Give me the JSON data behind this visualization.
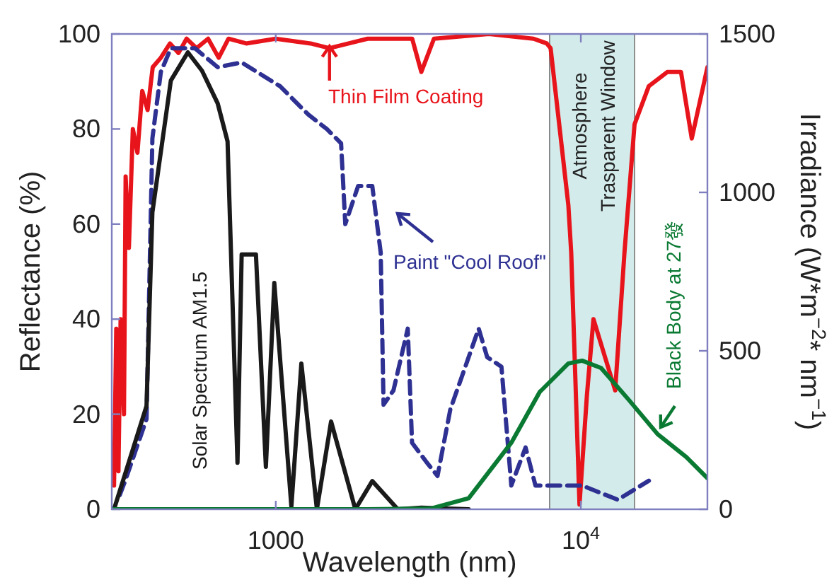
{
  "chart_data": {
    "type": "line",
    "xlabel": "Wavelength (nm)",
    "ylabel": "Reflectance (%)",
    "y2label": "Irradiance (W*m$^{−2}$* nm$^{−1}$)",
    "log": "x",
    "xlim": [
      290,
      26000
    ],
    "xticks": [
      1000,
      {
        "value": 10000,
        "label": "10$^{4}$"
      }
    ],
    "ylim": [
      0,
      100
    ],
    "yticks": [
      0,
      20,
      40,
      60,
      80,
      100
    ],
    "y2lim": [
      0,
      1500
    ],
    "y2ticks": [
      0,
      500,
      1000,
      1500
    ],
    "grid": false,
    "bands": [
      {
        "axis": "x",
        "from": 7900,
        "to": 15000,
        "label": "Atmosphere Trasparent Window",
        "color": "#d4ebeb"
      }
    ],
    "series": [
      {
        "color": "#e8141b",
        "x": [
          295,
          300,
          305,
          310,
          318,
          322,
          330,
          340,
          352,
          365,
          380,
          395,
          420,
          450,
          480,
          510,
          550,
          600,
          650,
          700,
          800,
          1000,
          1300,
          1500,
          2000,
          2300,
          2800,
          3000,
          3300,
          5000,
          7000,
          7730,
          7960,
          9100,
          9300,
          9900,
          10470,
          11000,
          12960,
          13900,
          15000,
          16700,
          19200,
          21300,
          23100,
          26000
        ],
        "values": [
          5,
          38,
          8,
          40,
          20,
          70,
          55,
          80,
          75,
          88,
          84,
          93,
          95,
          98,
          96,
          99,
          97,
          99,
          95,
          99,
          98,
          99,
          98,
          97,
          99,
          99,
          99,
          92,
          99,
          100,
          99,
          98,
          97,
          64,
          54,
          1,
          24,
          40,
          25,
          54,
          81,
          89,
          92,
          92,
          78,
          93
        ]
      },
      {
        "color": "#2e3192",
        "line_style": "dashed",
        "x": [
          308,
          321,
          377,
          394,
          420,
          453,
          543,
          645,
          773,
          1033,
          1280,
          1470,
          1637,
          1690,
          1862,
          2072,
          2208,
          2256,
          2431,
          2708,
          2797,
          3113,
          3390,
          3734,
          4625,
          4932,
          5492,
          5918,
          6590,
          7100,
          10100,
          13220,
          16710
        ],
        "values": [
          3,
          6,
          19,
          78,
          92,
          97,
          97,
          93,
          94,
          89,
          83,
          80,
          77,
          60,
          68,
          68,
          54,
          22,
          25,
          38,
          14,
          10,
          7,
          21,
          38,
          32,
          30,
          5,
          13,
          5,
          5,
          2,
          6
        ]
      },
      {
        "color": "#1a1a1a",
        "axis": "y2",
        "x": [
          295,
          377,
          394,
          453,
          515,
          573,
          645,
          695,
          749,
          773,
          861,
          928,
          989,
          1125,
          1213,
          1364,
          1518,
          1823,
          2072,
          2512,
          3000,
          4290
        ],
        "values": [
          0,
          326,
          937,
          1353,
          1442,
          1384,
          1281,
          1161,
          147,
          804,
          804,
          134,
          714,
          9,
          460,
          0,
          277,
          0,
          89,
          0,
          5,
          0
        ]
      },
      {
        "color": "#0a7a33",
        "axis": "y2",
        "x": [
          290,
          1000,
          2000,
          3215,
          4290,
          5918,
          7330,
          9100,
          10100,
          11650,
          14400,
          17860,
          22160,
          26000
        ],
        "values": [
          0,
          0,
          0,
          2,
          35,
          210,
          370,
          460,
          469,
          446,
          344,
          237,
          165,
          98
        ]
      }
    ],
    "annotations": [
      {
        "text": "Thin Film Coating",
        "x": 1500,
        "y": 98
      },
      "Paint \"Cool Roof\"",
      "Solar Spectrum AM1.5",
      "Black Body at 27發"
    ]
  }
}
